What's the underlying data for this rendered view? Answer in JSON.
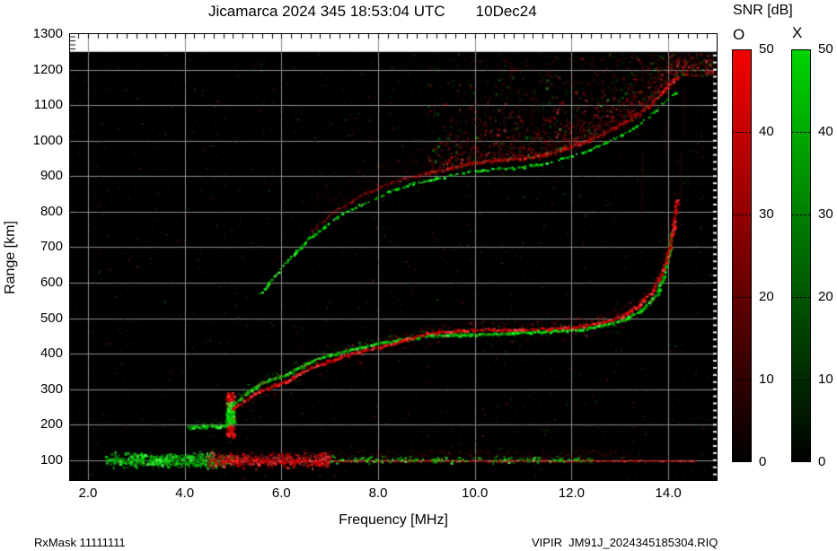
{
  "title": {
    "datetime": "Jicamarca 2024 345 18:53:04 UTC",
    "date": "10Dec24"
  },
  "footer": {
    "rx_mask": "RxMask 11111111",
    "file": "VIPIR  JM91J_2024345185304.RIQ"
  },
  "colorbar": {
    "title": "SNR [dB]",
    "min": 0,
    "max": 50,
    "bars": [
      {
        "label": "O",
        "top_color": "#f40000",
        "bottom_color": "#000000"
      },
      {
        "label": "X",
        "top_color": "#00d400",
        "bottom_color": "#000000"
      }
    ],
    "tick_values": [
      50,
      40,
      30,
      20,
      10,
      0
    ],
    "tick_labels": [
      "50",
      "40",
      "30",
      "20",
      "10",
      "0"
    ]
  },
  "chart_data": {
    "type": "heatmap",
    "title": "Jicamarca 2024 345 18:53:04 UTC 10Dec24",
    "xlabel": "Frequency [MHz]",
    "ylabel": "Range [km]",
    "xlim": [
      1.63,
      15.0
    ],
    "ylim": [
      44,
      1300
    ],
    "data_top_km": 1250,
    "grid": true,
    "grid_color": "#8c8c8c",
    "background": "#000000",
    "xticks": [
      2,
      4,
      6,
      8,
      10,
      12,
      14
    ],
    "xtick_labels": [
      "2.0",
      "4.0",
      "6.0",
      "8.0",
      "10.0",
      "12.0",
      "14.0"
    ],
    "yticks": [
      100,
      200,
      300,
      400,
      500,
      600,
      700,
      800,
      900,
      1000,
      1100,
      1200,
      1300
    ],
    "ytick_labels": [
      "100",
      "200",
      "300",
      "400",
      "500",
      "600",
      "700",
      "800",
      "900",
      "1000",
      "1100",
      "1200",
      "1300"
    ],
    "ygrid": [
      100,
      200,
      300,
      400,
      500,
      600,
      700,
      800,
      900,
      1000,
      1100,
      1200
    ],
    "modes": {
      "O": "#dd0000",
      "X": "#00cc00"
    },
    "series": [
      {
        "name": "F-trace first hop X-mode",
        "mode": "X",
        "color": "green",
        "dotted": false,
        "jitter": 2.2,
        "size": 3,
        "halo": 1,
        "up": 8,
        "down": 5,
        "ramp": false,
        "points": [
          [
            4.05,
            195
          ],
          [
            4.45,
            197
          ],
          [
            4.8,
            198
          ],
          [
            4.88,
            225
          ],
          [
            4.95,
            258
          ],
          [
            5.1,
            272
          ],
          [
            5.3,
            295
          ],
          [
            5.6,
            322
          ],
          [
            6.0,
            338
          ],
          [
            6.5,
            374
          ],
          [
            7.0,
            400
          ],
          [
            7.5,
            417
          ],
          [
            8.0,
            430
          ],
          [
            8.5,
            443
          ],
          [
            9.0,
            451
          ],
          [
            9.5,
            455
          ],
          [
            10.0,
            457
          ],
          [
            10.5,
            459
          ],
          [
            11.0,
            462
          ],
          [
            11.5,
            465
          ],
          [
            12.0,
            469
          ],
          [
            12.3,
            474
          ],
          [
            12.6,
            481
          ],
          [
            12.9,
            491
          ],
          [
            13.2,
            506
          ],
          [
            13.5,
            532
          ],
          [
            13.75,
            572
          ],
          [
            13.9,
            625
          ],
          [
            14.0,
            690
          ],
          [
            14.05,
            745
          ]
        ]
      },
      {
        "name": "F-trace first hop O-mode",
        "mode": "O",
        "color": "red",
        "dotted": false,
        "jitter": 2.2,
        "size": 3,
        "halo": 2,
        "up": 10,
        "down": 14,
        "ramp": false,
        "points": [
          [
            4.95,
            245
          ],
          [
            5.2,
            268
          ],
          [
            5.5,
            295
          ],
          [
            6.0,
            320
          ],
          [
            6.5,
            356
          ],
          [
            7.0,
            384
          ],
          [
            7.5,
            404
          ],
          [
            8.0,
            420
          ],
          [
            8.5,
            440
          ],
          [
            9.0,
            460
          ],
          [
            9.5,
            466
          ],
          [
            10.0,
            469
          ],
          [
            10.5,
            470
          ],
          [
            11.0,
            470
          ],
          [
            11.5,
            472
          ],
          [
            12.0,
            477
          ],
          [
            12.4,
            484
          ],
          [
            12.8,
            497
          ],
          [
            13.1,
            515
          ],
          [
            13.4,
            542
          ],
          [
            13.65,
            578
          ],
          [
            13.85,
            628
          ],
          [
            13.95,
            672
          ],
          [
            14.05,
            730
          ],
          [
            14.12,
            790
          ],
          [
            14.16,
            840
          ]
        ]
      },
      {
        "name": "F-trace second hop X-mode",
        "mode": "X",
        "color": "green",
        "dotted": true,
        "jitter": 1.8,
        "size": 2.6,
        "halo": 0,
        "up": 4,
        "down": 3,
        "ramp": false,
        "points": [
          [
            5.55,
            570
          ],
          [
            5.95,
            640
          ],
          [
            6.5,
            720
          ],
          [
            7.05,
            780
          ],
          [
            7.6,
            820
          ],
          [
            8.2,
            858
          ],
          [
            8.7,
            880
          ],
          [
            9.3,
            898
          ],
          [
            9.85,
            915
          ],
          [
            10.4,
            923
          ],
          [
            11.0,
            928
          ],
          [
            11.5,
            940
          ],
          [
            12.05,
            960
          ],
          [
            12.6,
            990
          ],
          [
            13.2,
            1030
          ],
          [
            13.55,
            1065
          ],
          [
            13.9,
            1110
          ],
          [
            14.15,
            1140
          ]
        ]
      },
      {
        "name": "F-trace second hop O-mode spread",
        "mode": "O",
        "color": "red",
        "dotted": false,
        "jitter": 2.5,
        "size": 2.5,
        "halo": 5,
        "up": 30,
        "down": 4,
        "ramp": true,
        "points": [
          [
            6.6,
            745
          ],
          [
            7.1,
            805
          ],
          [
            7.6,
            845
          ],
          [
            8.2,
            882
          ],
          [
            8.7,
            902
          ],
          [
            9.3,
            920
          ],
          [
            9.9,
            937
          ],
          [
            10.4,
            947
          ],
          [
            11.0,
            952
          ],
          [
            11.5,
            964
          ],
          [
            12.05,
            987
          ],
          [
            12.6,
            1018
          ],
          [
            13.2,
            1062
          ],
          [
            13.6,
            1102
          ],
          [
            13.95,
            1152
          ],
          [
            14.2,
            1185
          ]
        ]
      }
    ],
    "cusps": [
      {
        "name": "O-mode cusp vertical spread",
        "color": "red",
        "f": [
          4.86,
          5.0
        ],
        "km": [
          168,
          292
        ],
        "count": 170
      },
      {
        "name": "X-mode cusp blob",
        "color": "green",
        "f": [
          4.84,
          5.02
        ],
        "km": [
          205,
          265
        ],
        "count": 95
      }
    ],
    "e_region": {
      "green_patch": {
        "f": [
          2.35,
          5.0
        ],
        "km_center": 103,
        "km_sigma": 5,
        "count": 780
      },
      "red_patch": {
        "f": [
          4.45,
          7.0
        ],
        "km_center": 103,
        "km_sigma": 5,
        "count": 540
      },
      "red_line": {
        "f": [
          4.8,
          14.55
        ],
        "km": 99
      },
      "green_sparse": {
        "f": [
          7.0,
          12.4
        ],
        "km_center": 103,
        "km_sigma": 3,
        "count": 180
      },
      "red_haze": {
        "f": [
          4.5,
          13.5
        ],
        "km": [
          100,
          132
        ],
        "count": 700
      }
    },
    "noise": {
      "background_count": 2600,
      "spread_cloud": {
        "f": [
          9.0,
          14.95
        ],
        "top_km": 1255,
        "count": 1750,
        "green_fraction": 0.15
      },
      "streaks": {
        "f": [
          10.5,
          14.6
        ],
        "km": [
          950,
          1245
        ],
        "count": 26
      }
    }
  }
}
